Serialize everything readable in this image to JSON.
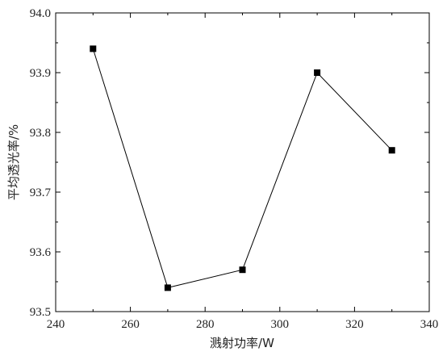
{
  "chart_data": {
    "type": "line",
    "title": "",
    "xlabel": "溅射功率/W",
    "ylabel": "平均透光率/%",
    "xlim": [
      240,
      340
    ],
    "ylim": [
      93.5,
      94.0
    ],
    "x_ticks": [
      "240",
      "260",
      "280",
      "300",
      "320",
      "340"
    ],
    "y_ticks": [
      "93.5",
      "93.6",
      "93.7",
      "93.8",
      "93.9",
      "94.0"
    ],
    "grid": false,
    "marker": "square",
    "series": [
      {
        "x": [
          250,
          270,
          290,
          310,
          330
        ],
        "values": [
          93.94,
          93.54,
          93.57,
          93.9,
          93.77
        ]
      }
    ],
    "line_color": "#000000"
  }
}
